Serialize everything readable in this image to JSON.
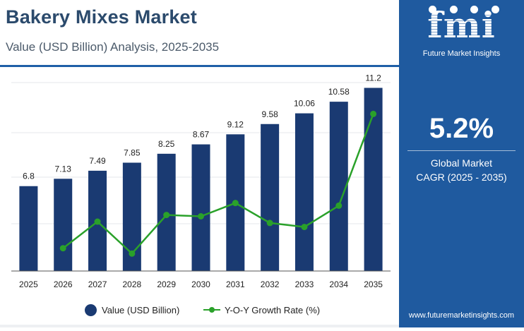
{
  "header": {
    "title": "Bakery Mixes Market",
    "subtitle": "Value (USD Billion) Analysis, 2025-2035"
  },
  "brand": {
    "logo_text": "fmi",
    "name": "Future Market Insights",
    "website": "www.futuremarketinsights.com"
  },
  "cagr": {
    "value": "5.2%",
    "label_line1": "Global Market",
    "label_line2": "CAGR (2025 - 2035)"
  },
  "colors": {
    "bar": "#1a3a72",
    "line": "#2aa12a",
    "panel": "#1f5a9f",
    "title": "#2b4a6c"
  },
  "chart_data": {
    "type": "bar",
    "categories": [
      "2025",
      "2026",
      "2027",
      "2028",
      "2029",
      "2030",
      "2031",
      "2032",
      "2033",
      "2034",
      "2035"
    ],
    "series": [
      {
        "name": "Value (USD Billion)",
        "type": "bar",
        "values": [
          6.8,
          7.13,
          7.49,
          7.85,
          8.25,
          8.67,
          9.12,
          9.58,
          10.06,
          10.58,
          11.2
        ],
        "labels": [
          "6.8",
          "7.13",
          "7.49",
          "7.85",
          "8.25",
          "8.67",
          "9.12",
          "9.58",
          "10.06",
          "10.58",
          "11.2"
        ]
      },
      {
        "name": "Y-O-Y Growth Rate (%)",
        "type": "line",
        "values": [
          null,
          4.85,
          5.05,
          4.81,
          5.1,
          5.09,
          5.19,
          5.04,
          5.01,
          5.17,
          5.86
        ]
      }
    ],
    "ylim": [
      3,
      11.5
    ],
    "grid": true,
    "legend_position": "bottom"
  }
}
